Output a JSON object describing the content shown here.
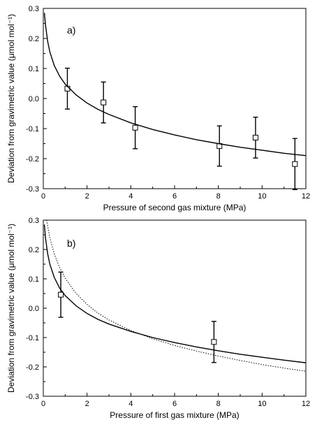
{
  "chart_data": [
    {
      "type": "scatter",
      "panel_label": "a)",
      "xlabel": "Pressure of second gas mixture (MPa)",
      "ylabel": "Deviation from gravimetric value  (μmol mol⁻¹)",
      "xlim": [
        0,
        12
      ],
      "ylim": [
        -0.3,
        0.3
      ],
      "xticks": [
        0,
        2,
        4,
        6,
        8,
        10,
        12
      ],
      "yticks": [
        -0.3,
        -0.2,
        -0.1,
        0.0,
        0.1,
        0.2,
        0.3
      ],
      "xtick_labels": [
        "0",
        "2",
        "4",
        "6",
        "8",
        "10",
        "12"
      ],
      "ytick_labels": [
        "-0.3",
        "-0.2",
        "-0.1",
        "0.0",
        "0.1",
        "0.2",
        "0.3"
      ],
      "grid": false,
      "series": [
        {
          "kind": "points_with_error_bars",
          "marker": "open-square",
          "x": [
            1.1,
            2.75,
            4.2,
            8.05,
            9.7,
            11.5
          ],
          "y": [
            0.033,
            -0.013,
            -0.097,
            -0.158,
            -0.13,
            -0.218
          ],
          "yerr": [
            0.068,
            0.068,
            0.07,
            0.067,
            0.068,
            0.085
          ]
        },
        {
          "kind": "fit_curve",
          "style": "solid",
          "x": [
            0.05,
            0.1,
            0.2,
            0.3,
            0.5,
            0.75,
            1.0,
            1.5,
            2.0,
            2.5,
            3.0,
            4.0,
            5.0,
            6.0,
            7.0,
            8.0,
            9.0,
            10.0,
            11.0,
            12.0
          ],
          "y": [
            0.285,
            0.245,
            0.19,
            0.155,
            0.11,
            0.074,
            0.048,
            0.012,
            -0.015,
            -0.036,
            -0.053,
            -0.081,
            -0.103,
            -0.121,
            -0.137,
            -0.15,
            -0.162,
            -0.172,
            -0.182,
            -0.19
          ]
        }
      ]
    },
    {
      "type": "scatter",
      "panel_label": "b)",
      "xlabel": "Pressure of first gas mixture (MPa)",
      "ylabel": "Deviation from gravimetric value  (μmol mol⁻¹)",
      "xlim": [
        0,
        12
      ],
      "ylim": [
        -0.3,
        0.3
      ],
      "xticks": [
        0,
        2,
        4,
        6,
        8,
        10,
        12
      ],
      "yticks": [
        -0.3,
        -0.2,
        -0.1,
        0.0,
        0.1,
        0.2,
        0.3
      ],
      "xtick_labels": [
        "0",
        "2",
        "4",
        "6",
        "8",
        "10",
        "12"
      ],
      "ytick_labels": [
        "-0.3",
        "-0.2",
        "-0.1",
        "0.0",
        "0.1",
        "0.2",
        "0.3"
      ],
      "grid": false,
      "series": [
        {
          "kind": "points_with_error_bars",
          "marker": "open-square",
          "x": [
            0.8,
            7.8
          ],
          "y": [
            0.046,
            -0.115
          ],
          "yerr": [
            0.077,
            0.07
          ]
        },
        {
          "kind": "fit_curve",
          "style": "solid",
          "x": [
            0.05,
            0.1,
            0.2,
            0.3,
            0.5,
            0.75,
            1.0,
            1.5,
            2.0,
            2.5,
            3.0,
            4.0,
            5.0,
            6.0,
            7.0,
            8.0,
            9.0,
            10.0,
            11.0,
            12.0
          ],
          "y": [
            0.285,
            0.24,
            0.185,
            0.15,
            0.105,
            0.068,
            0.043,
            0.008,
            -0.018,
            -0.038,
            -0.054,
            -0.079,
            -0.1,
            -0.117,
            -0.132,
            -0.145,
            -0.157,
            -0.167,
            -0.177,
            -0.186
          ]
        },
        {
          "kind": "fit_curve",
          "style": "dotted",
          "x": [
            0.15,
            0.3,
            0.5,
            0.75,
            1.0,
            1.5,
            2.0,
            2.5,
            3.0,
            4.0,
            5.0,
            6.0,
            7.0,
            8.0,
            9.0,
            10.0,
            11.0,
            12.0
          ],
          "y": [
            0.3,
            0.24,
            0.185,
            0.138,
            0.102,
            0.05,
            0.013,
            -0.017,
            -0.04,
            -0.076,
            -0.104,
            -0.127,
            -0.146,
            -0.163,
            -0.178,
            -0.192,
            -0.204,
            -0.215
          ]
        }
      ]
    }
  ]
}
